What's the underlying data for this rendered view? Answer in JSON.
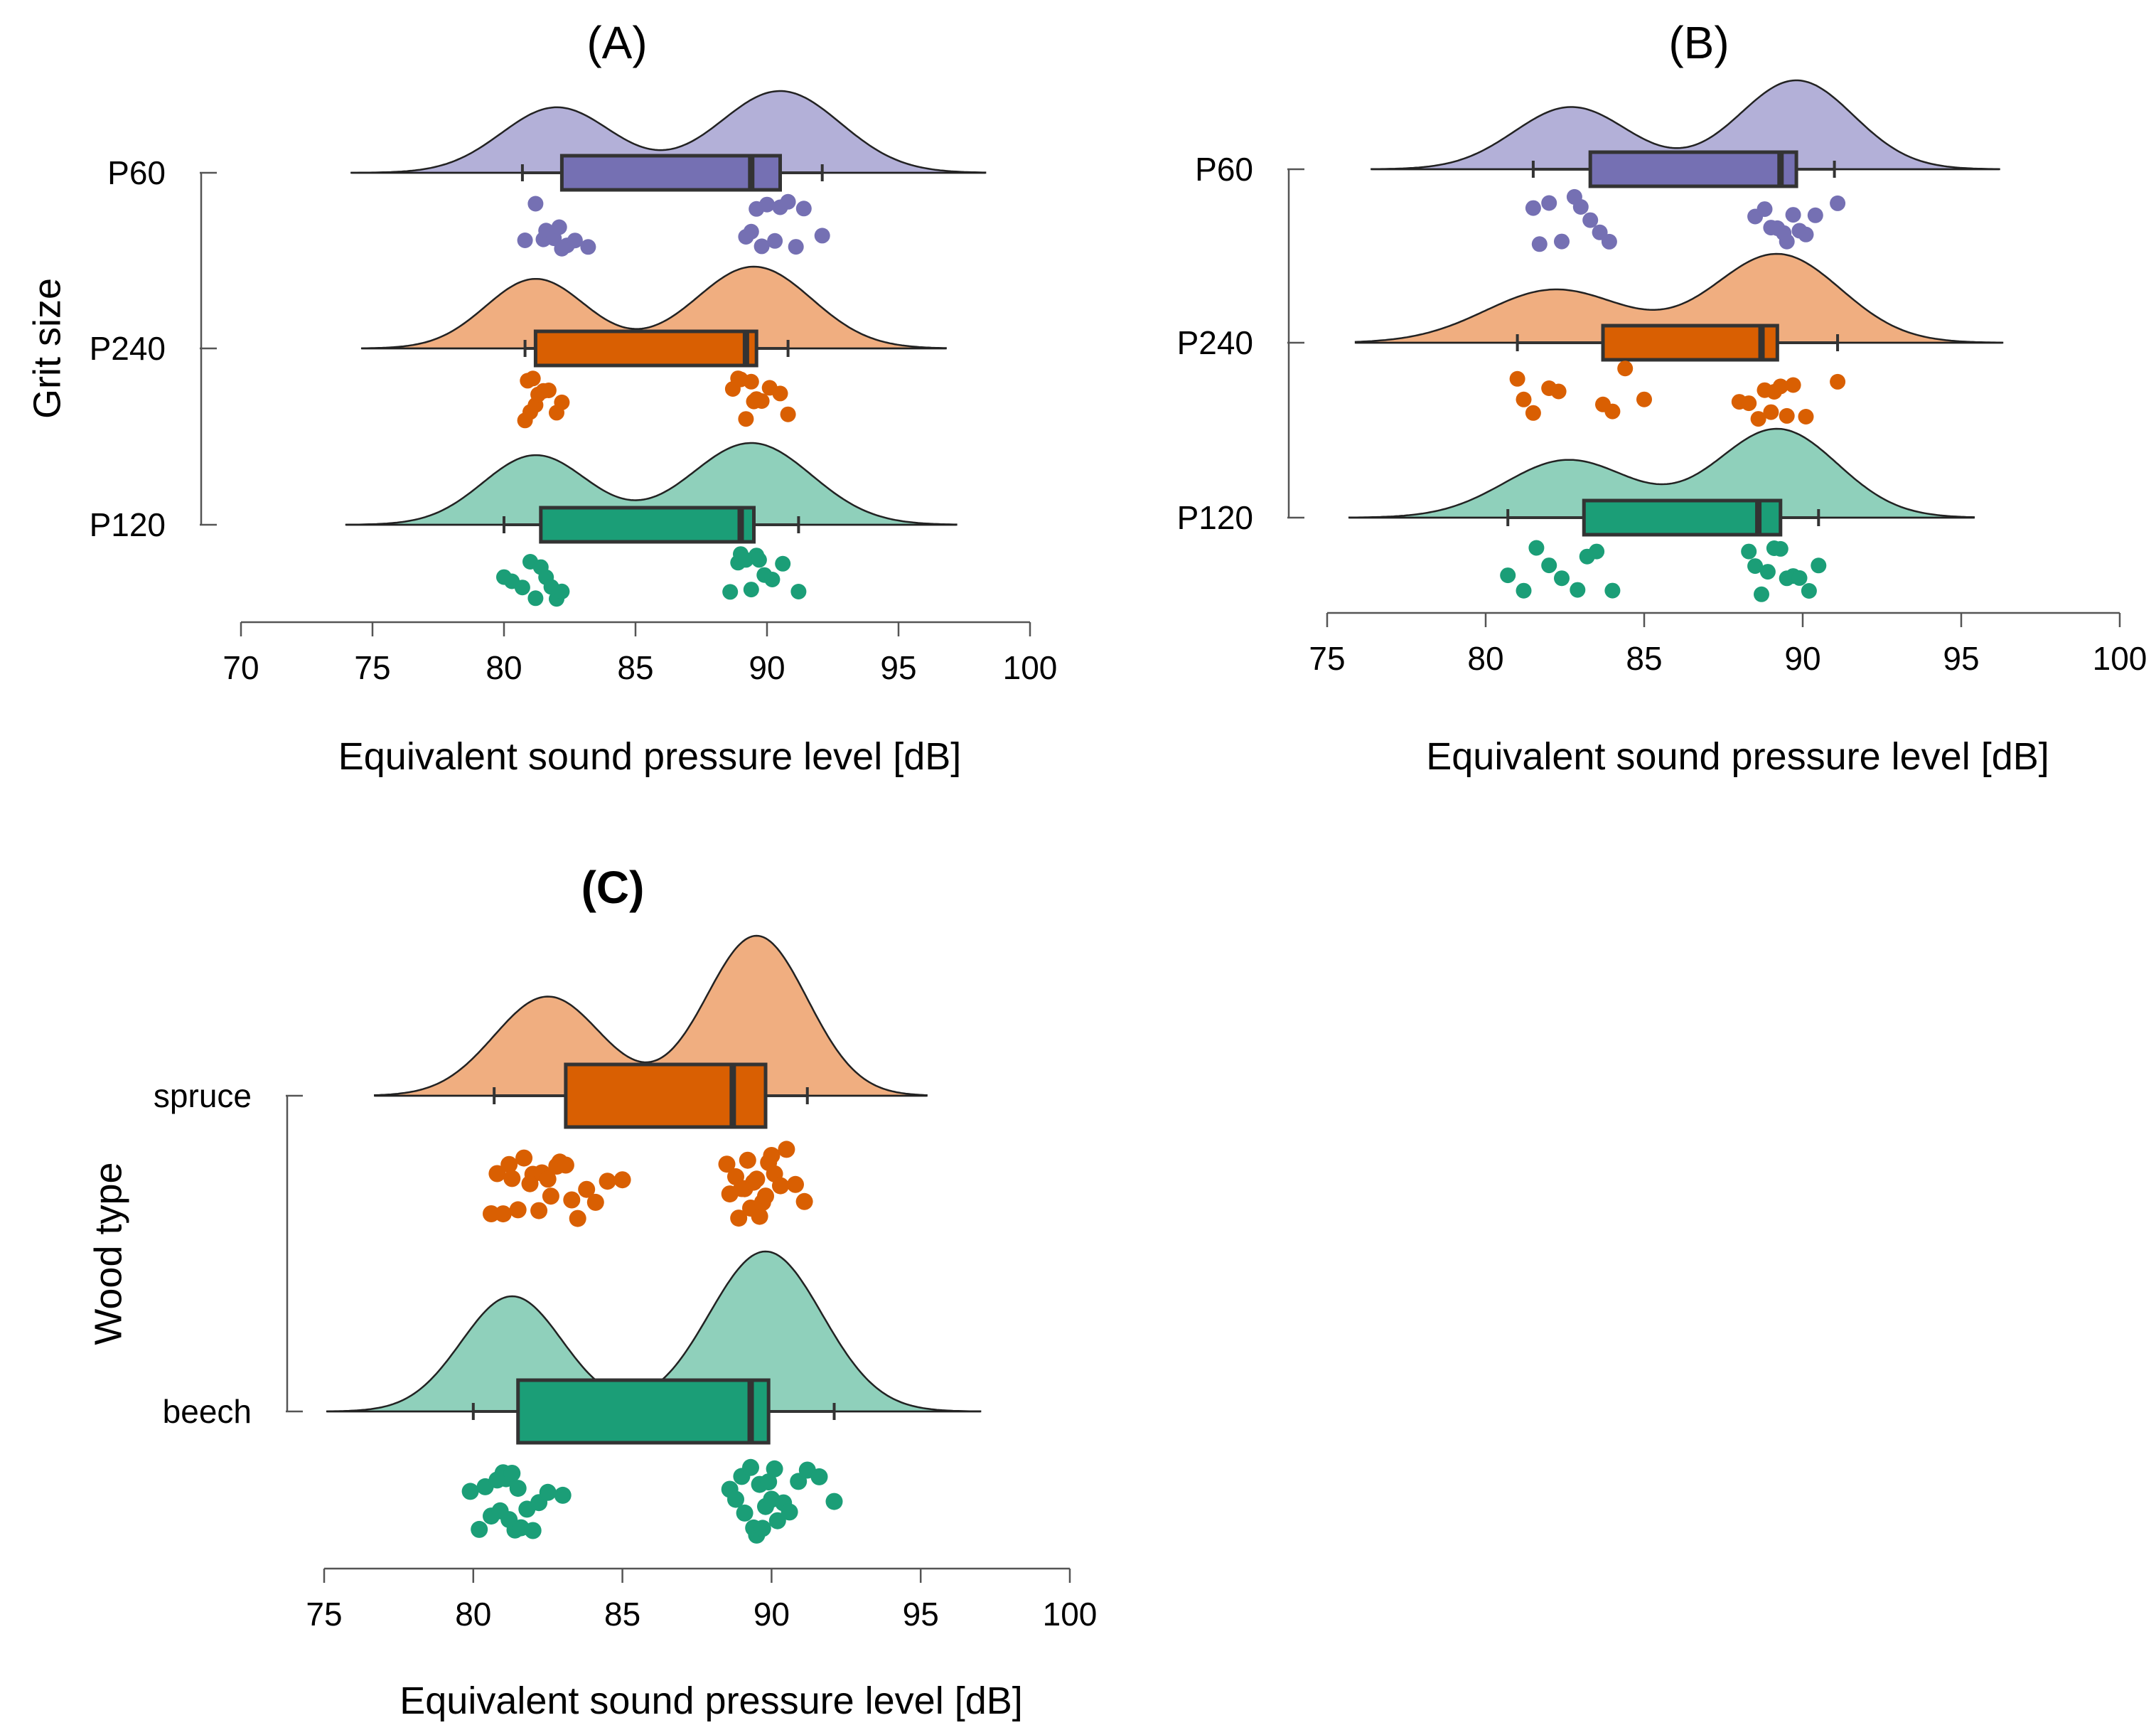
{
  "chart_data": [
    {
      "panel": "(A)",
      "type": "raincloud",
      "orientation": "horizontal",
      "xlabel": "Equivalent sound pressure level [dB]",
      "ylabel": "Grit size",
      "xlim": [
        70,
        100
      ],
      "xticks": [
        70,
        75,
        80,
        85,
        90,
        95,
        100
      ],
      "grid": false,
      "categories": [
        "P60",
        "P240",
        "P120"
      ],
      "series": [
        {
          "name": "P60",
          "color": "#7570b3",
          "fill": "#b3b0d8",
          "density": {
            "range": [
              74.2,
              98.3
            ],
            "peaks": [
              {
                "mean": 82.0,
                "sd": 2.1,
                "weight": 0.8
              },
              {
                "mean": 90.5,
                "sd": 2.3,
                "weight": 1.0
              }
            ]
          },
          "box": {
            "whisker_low": 80.7,
            "q1": 82.2,
            "median": 89.4,
            "q3": 90.5,
            "whisker_high": 92.1
          },
          "points": [
            80.8,
            81.2,
            81.5,
            81.6,
            81.9,
            82.1,
            82.2,
            82.4,
            82.7,
            83.2,
            89.2,
            89.4,
            89.6,
            89.8,
            90.0,
            90.3,
            90.5,
            90.8,
            91.1,
            91.4,
            92.1
          ]
        },
        {
          "name": "P240",
          "color": "#d95f02",
          "fill": "#f0ae80",
          "density": {
            "range": [
              74.6,
              96.8
            ],
            "peaks": [
              {
                "mean": 81.2,
                "sd": 1.9,
                "weight": 0.85
              },
              {
                "mean": 89.5,
                "sd": 2.2,
                "weight": 1.0
              }
            ]
          },
          "box": {
            "whisker_low": 80.8,
            "q1": 81.2,
            "median": 89.2,
            "q3": 89.6,
            "whisker_high": 90.8
          },
          "points": [
            80.8,
            80.9,
            81.0,
            81.1,
            81.2,
            81.3,
            81.5,
            81.7,
            82.0,
            82.2,
            88.7,
            88.9,
            89.0,
            89.2,
            89.4,
            89.5,
            89.6,
            89.8,
            90.1,
            90.5,
            90.8
          ]
        },
        {
          "name": "P120",
          "color": "#1b9e77",
          "fill": "#8fd0bb",
          "density": {
            "range": [
              74.0,
              97.2
            ],
            "peaks": [
              {
                "mean": 81.2,
                "sd": 2.0,
                "weight": 0.85
              },
              {
                "mean": 89.4,
                "sd": 2.3,
                "weight": 1.0
              }
            ]
          },
          "box": {
            "whisker_low": 80.0,
            "q1": 81.4,
            "median": 89.0,
            "q3": 89.5,
            "whisker_high": 91.2
          },
          "points": [
            80.0,
            80.3,
            80.7,
            81.0,
            81.2,
            81.4,
            81.6,
            81.8,
            82.0,
            82.2,
            88.6,
            88.9,
            89.0,
            89.2,
            89.4,
            89.6,
            89.7,
            89.9,
            90.2,
            90.6,
            91.2
          ]
        }
      ]
    },
    {
      "panel": "(B)",
      "type": "raincloud",
      "orientation": "horizontal",
      "xlabel": "Equivalent sound pressure level [dB]",
      "ylabel": "",
      "xlim": [
        75,
        100
      ],
      "xticks": [
        75,
        80,
        85,
        90,
        95,
        100
      ],
      "grid": false,
      "categories": [
        "P60",
        "P240",
        "P120"
      ],
      "series": [
        {
          "name": "P60",
          "color": "#7570b3",
          "fill": "#b3b0d8",
          "density": {
            "range": [
              76.4,
              96.2
            ],
            "peaks": [
              {
                "mean": 82.7,
                "sd": 1.8,
                "weight": 0.7
              },
              {
                "mean": 89.8,
                "sd": 1.8,
                "weight": 1.0
              }
            ]
          },
          "box": {
            "whisker_low": 81.5,
            "q1": 83.3,
            "median": 89.3,
            "q3": 89.8,
            "whisker_high": 91.0
          },
          "points": [
            81.5,
            81.7,
            82.0,
            82.4,
            82.8,
            83.0,
            83.3,
            83.6,
            83.9,
            88.5,
            88.8,
            89.0,
            89.2,
            89.4,
            89.5,
            89.7,
            89.9,
            90.1,
            90.4,
            91.1
          ]
        },
        {
          "name": "P240",
          "color": "#d95f02",
          "fill": "#f0ae80",
          "density": {
            "range": [
              75.9,
              96.3
            ],
            "peaks": [
              {
                "mean": 82.2,
                "sd": 2.2,
                "weight": 0.6
              },
              {
                "mean": 89.2,
                "sd": 2.0,
                "weight": 1.0
              }
            ]
          },
          "box": {
            "whisker_low": 81.0,
            "q1": 83.7,
            "median": 88.7,
            "q3": 89.2,
            "whisker_high": 91.1
          },
          "points": [
            81.0,
            81.2,
            81.5,
            82.0,
            82.3,
            83.7,
            84.0,
            84.4,
            85.0,
            88.0,
            88.3,
            88.6,
            88.8,
            89.0,
            89.1,
            89.3,
            89.5,
            89.7,
            90.1,
            91.1
          ]
        },
        {
          "name": "P120",
          "color": "#1b9e77",
          "fill": "#8fd0bb",
          "density": {
            "range": [
              75.7,
              95.4
            ],
            "peaks": [
              {
                "mean": 82.6,
                "sd": 2.0,
                "weight": 0.65
              },
              {
                "mean": 89.2,
                "sd": 1.9,
                "weight": 1.0
              }
            ]
          },
          "box": {
            "whisker_low": 80.7,
            "q1": 83.1,
            "median": 88.6,
            "q3": 89.3,
            "whisker_high": 90.5
          },
          "points": [
            80.7,
            81.2,
            81.6,
            82.0,
            82.4,
            82.9,
            83.2,
            83.5,
            84.0,
            88.3,
            88.5,
            88.7,
            88.9,
            89.1,
            89.3,
            89.5,
            89.7,
            89.9,
            90.2,
            90.5
          ]
        }
      ]
    },
    {
      "panel": "(C)",
      "type": "raincloud",
      "orientation": "horizontal",
      "xlabel": "Equivalent sound pressure level [dB]",
      "ylabel": "Wood type",
      "xlim": [
        75,
        100
      ],
      "xticks": [
        75,
        80,
        85,
        90,
        95,
        100
      ],
      "grid": false,
      "categories": [
        "spruce",
        "beech"
      ],
      "series": [
        {
          "name": "spruce",
          "color": "#d95f02",
          "fill": "#f0ae80",
          "density": {
            "range": [
              76.7,
              95.2
            ],
            "peaks": [
              {
                "mean": 82.5,
                "sd": 1.8,
                "weight": 0.62
              },
              {
                "mean": 89.5,
                "sd": 1.7,
                "weight": 1.0
              }
            ]
          },
          "box": {
            "whisker_low": 80.7,
            "q1": 83.1,
            "median": 88.7,
            "q3": 89.8,
            "whisker_high": 91.2
          },
          "points": [
            80.6,
            80.8,
            81.0,
            81.2,
            81.3,
            81.5,
            81.7,
            81.9,
            82.0,
            82.2,
            82.3,
            82.5,
            82.6,
            82.8,
            82.9,
            83.1,
            83.3,
            83.5,
            83.8,
            84.1,
            84.5,
            85.0,
            88.5,
            88.6,
            88.8,
            88.9,
            89.0,
            89.1,
            89.2,
            89.3,
            89.4,
            89.5,
            89.6,
            89.7,
            89.8,
            89.9,
            90.0,
            90.1,
            90.3,
            90.5,
            90.8,
            91.1
          ]
        },
        {
          "name": "beech",
          "color": "#1b9e77",
          "fill": "#8fd0bb",
          "density": {
            "range": [
              75.1,
              97.0
            ],
            "peaks": [
              {
                "mean": 81.3,
                "sd": 1.7,
                "weight": 0.72
              },
              {
                "mean": 89.8,
                "sd": 1.9,
                "weight": 1.0
              }
            ]
          },
          "box": {
            "whisker_low": 80.0,
            "q1": 81.5,
            "median": 89.3,
            "q3": 89.9,
            "whisker_high": 92.1
          },
          "points": [
            79.9,
            80.2,
            80.4,
            80.6,
            80.8,
            80.9,
            81.0,
            81.1,
            81.2,
            81.3,
            81.4,
            81.5,
            81.6,
            81.8,
            82.0,
            82.2,
            82.5,
            83.0,
            88.6,
            88.8,
            89.0,
            89.1,
            89.3,
            89.4,
            89.5,
            89.6,
            89.7,
            89.8,
            89.9,
            90.0,
            90.1,
            90.2,
            90.4,
            90.6,
            90.9,
            91.2,
            91.6,
            92.1
          ]
        }
      ]
    }
  ]
}
